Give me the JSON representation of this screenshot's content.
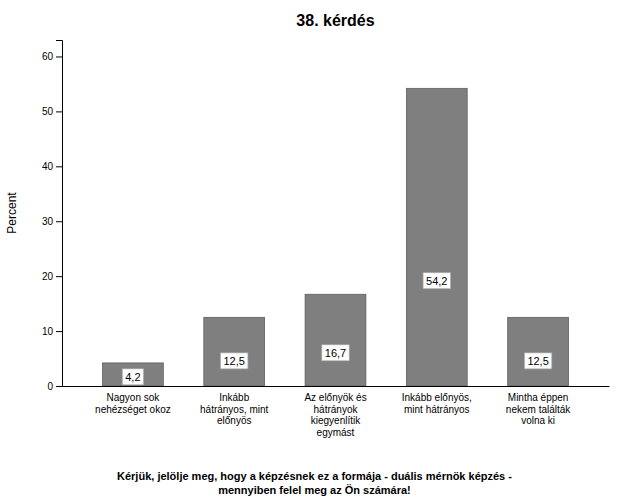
{
  "chart_data": {
    "type": "bar",
    "title": "38. kérdés",
    "categories": [
      "Nagyon sok\nnehézséget okoz",
      "Inkább\nhátrányos, mint\nelőnyös",
      "Az előnyök és\nhátrányok\nkiegyenlítik\negymást",
      "Inkább előnyös,\nmint hátrányos",
      "Mintha éppen\nnekem találták\nvolna ki"
    ],
    "values": [
      4.2,
      12.5,
      16.7,
      54.2,
      12.5
    ],
    "value_labels": [
      "4,2",
      "12,5",
      "16,7",
      "54,2",
      "12,5"
    ],
    "data_labels": true,
    "color": "#7f7f7f",
    "ylabel": "Percent",
    "ylim": [
      0,
      63
    ],
    "yticks": [
      0,
      10,
      20,
      30,
      40,
      50,
      60
    ],
    "grid": false,
    "annotations": [
      "Kérjük, jelölje meg, hogy a képzésnek ez a formája - duális mérnök képzés -\nmennyiben felel meg az Ön számára!"
    ]
  }
}
